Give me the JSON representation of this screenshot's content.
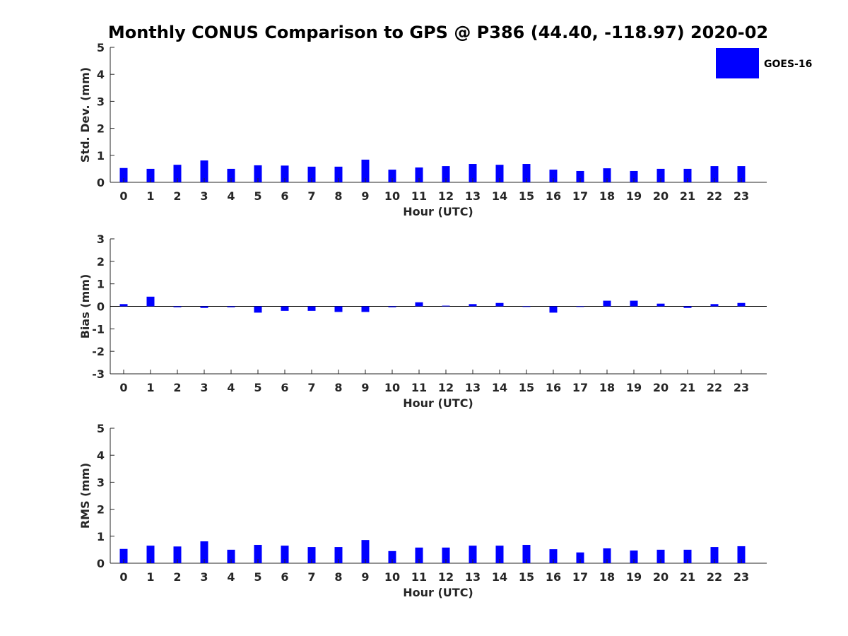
{
  "colors": {
    "bar": "#0000ff",
    "axis": "#262626",
    "background": "#ffffff"
  },
  "chart_data": [
    {
      "type": "bar",
      "title": "Monthly CONUS Comparison to GPS @ P386 (44.40, -118.97) 2020-02",
      "xlabel": "Hour (UTC)",
      "ylabel": "Std. Dev. (mm)",
      "ylim": [
        0,
        5
      ],
      "yticks": [
        "0",
        "1",
        "2",
        "3",
        "4",
        "5"
      ],
      "categories": [
        "0",
        "1",
        "2",
        "3",
        "4",
        "5",
        "6",
        "7",
        "8",
        "9",
        "10",
        "11",
        "12",
        "13",
        "14",
        "15",
        "16",
        "17",
        "18",
        "19",
        "20",
        "21",
        "22",
        "23"
      ],
      "series": [
        {
          "name": "GOES-16",
          "values": [
            0.53,
            0.5,
            0.65,
            0.81,
            0.5,
            0.63,
            0.62,
            0.58,
            0.58,
            0.84,
            0.47,
            0.55,
            0.6,
            0.68,
            0.65,
            0.68,
            0.47,
            0.42,
            0.52,
            0.42,
            0.5,
            0.5,
            0.6,
            0.6
          ]
        }
      ],
      "legend": {
        "label": "GOES-16",
        "position": "top-right"
      }
    },
    {
      "type": "bar",
      "xlabel": "Hour (UTC)",
      "ylabel": "Bias (mm)",
      "ylim": [
        -3,
        3
      ],
      "yticks": [
        "-3",
        "-2",
        "-1",
        "0",
        "1",
        "2",
        "3"
      ],
      "categories": [
        "0",
        "1",
        "2",
        "3",
        "4",
        "5",
        "6",
        "7",
        "8",
        "9",
        "10",
        "11",
        "12",
        "13",
        "14",
        "15",
        "16",
        "17",
        "18",
        "19",
        "20",
        "21",
        "22",
        "23"
      ],
      "series": [
        {
          "name": "GOES-16",
          "values": [
            0.1,
            0.43,
            -0.04,
            -0.07,
            -0.04,
            -0.28,
            -0.2,
            -0.2,
            -0.25,
            -0.25,
            -0.04,
            0.18,
            0.03,
            0.1,
            0.15,
            0.0,
            -0.28,
            0.0,
            0.25,
            0.25,
            0.12,
            -0.07,
            0.1,
            0.15
          ]
        }
      ]
    },
    {
      "type": "bar",
      "xlabel": "Hour (UTC)",
      "ylabel": "RMS (mm)",
      "ylim": [
        0,
        5
      ],
      "yticks": [
        "0",
        "1",
        "2",
        "3",
        "4",
        "5"
      ],
      "categories": [
        "0",
        "1",
        "2",
        "3",
        "4",
        "5",
        "6",
        "7",
        "8",
        "9",
        "10",
        "11",
        "12",
        "13",
        "14",
        "15",
        "16",
        "17",
        "18",
        "19",
        "20",
        "21",
        "22",
        "23"
      ],
      "series": [
        {
          "name": "GOES-16",
          "values": [
            0.53,
            0.65,
            0.62,
            0.81,
            0.5,
            0.68,
            0.65,
            0.6,
            0.6,
            0.86,
            0.45,
            0.58,
            0.58,
            0.65,
            0.65,
            0.68,
            0.52,
            0.4,
            0.55,
            0.47,
            0.5,
            0.5,
            0.6,
            0.63
          ]
        }
      ]
    }
  ]
}
